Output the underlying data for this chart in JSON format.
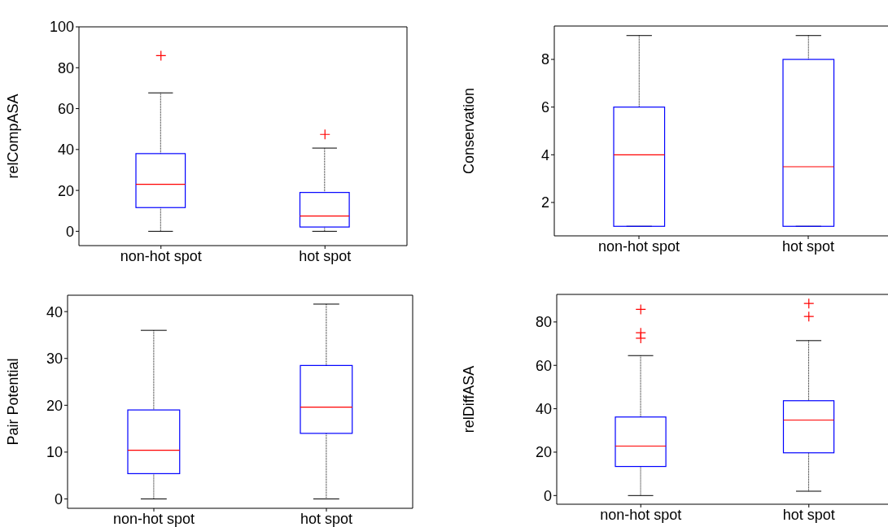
{
  "chart_data": [
    {
      "type": "box",
      "ylabel": "relCompASA",
      "categories": [
        "non-hot spot",
        "hot spot"
      ],
      "ylim": [
        -7,
        100
      ],
      "yticks": [
        0,
        20,
        40,
        60,
        80,
        100
      ],
      "boxes": [
        {
          "low": 0,
          "q1": 11.6,
          "median": 23,
          "q3": 38,
          "high": 67.7,
          "outliers": [
            85.9
          ]
        },
        {
          "low": 0,
          "q1": 2.1,
          "median": 7.5,
          "q3": 19,
          "high": 40.7,
          "outliers": [
            47.4
          ]
        }
      ]
    },
    {
      "type": "box",
      "ylabel": "Conservation",
      "categories": [
        "non-hot spot",
        "hot spot"
      ],
      "ylim": [
        0.6,
        9.4
      ],
      "yticks": [
        2,
        4,
        6,
        8
      ],
      "boxes": [
        {
          "low": 1,
          "q1": 1,
          "median": 4,
          "q3": 6,
          "high": 9
        },
        {
          "low": 1,
          "q1": 1,
          "median": 3.5,
          "q3": 8,
          "high": 9
        }
      ]
    },
    {
      "type": "box",
      "ylabel": "Pair Potential",
      "categories": [
        "non-hot spot",
        "hot spot"
      ],
      "ylim": [
        -2,
        43.5
      ],
      "yticks": [
        0,
        10,
        20,
        30,
        40
      ],
      "boxes": [
        {
          "low": 0,
          "q1": 5.4,
          "median": 10.4,
          "q3": 19,
          "high": 36
        },
        {
          "low": 0,
          "q1": 14,
          "median": 19.6,
          "q3": 28.5,
          "high": 41.6
        }
      ]
    },
    {
      "type": "box",
      "ylabel": "relDiffASA",
      "categories": [
        "non-hot spot",
        "hot spot"
      ],
      "ylim": [
        -4,
        92.7
      ],
      "yticks": [
        0,
        20,
        40,
        60,
        80
      ],
      "boxes": [
        {
          "low": 0,
          "q1": 13.4,
          "median": 22.8,
          "q3": 36.2,
          "high": 64.5,
          "outliers": [
            85.8,
            75,
            72.5
          ]
        },
        {
          "low": 2,
          "q1": 19.7,
          "median": 34.8,
          "q3": 43.7,
          "high": 71.4,
          "outliers": [
            88.5,
            82.5
          ]
        }
      ]
    }
  ]
}
